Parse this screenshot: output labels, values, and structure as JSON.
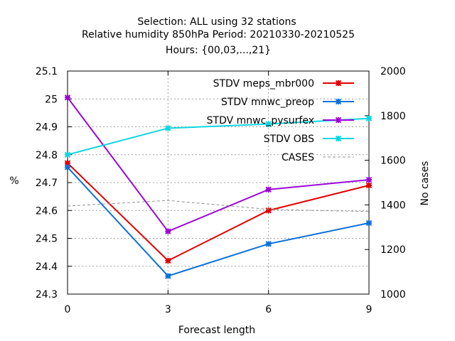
{
  "chart_data": {
    "type": "line",
    "title_lines": [
      "Selection: ALL using    32 stations",
      "Relative humidity 850hPa   Period: 20210330-20210525",
      "Hours: {00,03,...,21}"
    ],
    "xlabel": "Forecast length",
    "ylabel": "%",
    "y2label": "No cases",
    "x": [
      0,
      3,
      6,
      9
    ],
    "xticks": [
      "0",
      "3",
      "6",
      "9"
    ],
    "xlim": [
      0,
      9
    ],
    "ylim": [
      24.3,
      25.1
    ],
    "yticks": [
      "24.3",
      "24.4",
      "24.5",
      "24.6",
      "24.7",
      "24.8",
      "24.9",
      "25",
      "25.1"
    ],
    "y2lim": [
      1000,
      2000
    ],
    "y2ticks": [
      "1000",
      "1200",
      "1400",
      "1600",
      "1800",
      "2000"
    ],
    "grid": true,
    "legend_position": "top-right",
    "series": [
      {
        "name": "STDV meps_mbr000",
        "color": "#e00000",
        "marker": "x",
        "values": [
          24.77,
          24.42,
          24.6,
          24.69
        ]
      },
      {
        "name": "STDV mnwc_preop",
        "color": "#0a70d8",
        "marker": "x",
        "values": [
          24.755,
          24.365,
          24.48,
          24.555
        ]
      },
      {
        "name": "STDV mnwc_pysurfex",
        "color": "#9a06d8",
        "marker": "x",
        "values": [
          25.005,
          24.525,
          24.675,
          24.71
        ]
      },
      {
        "name": "STDV OBS",
        "color": "#0fd6e0",
        "marker": "x",
        "values": [
          24.8,
          24.895,
          24.91,
          24.93
        ]
      },
      {
        "name": "CASES",
        "color": "#909090",
        "marker": "none",
        "dashed": true,
        "axis": "y2",
        "values": [
          1395,
          1420,
          1380,
          1370
        ]
      }
    ]
  }
}
